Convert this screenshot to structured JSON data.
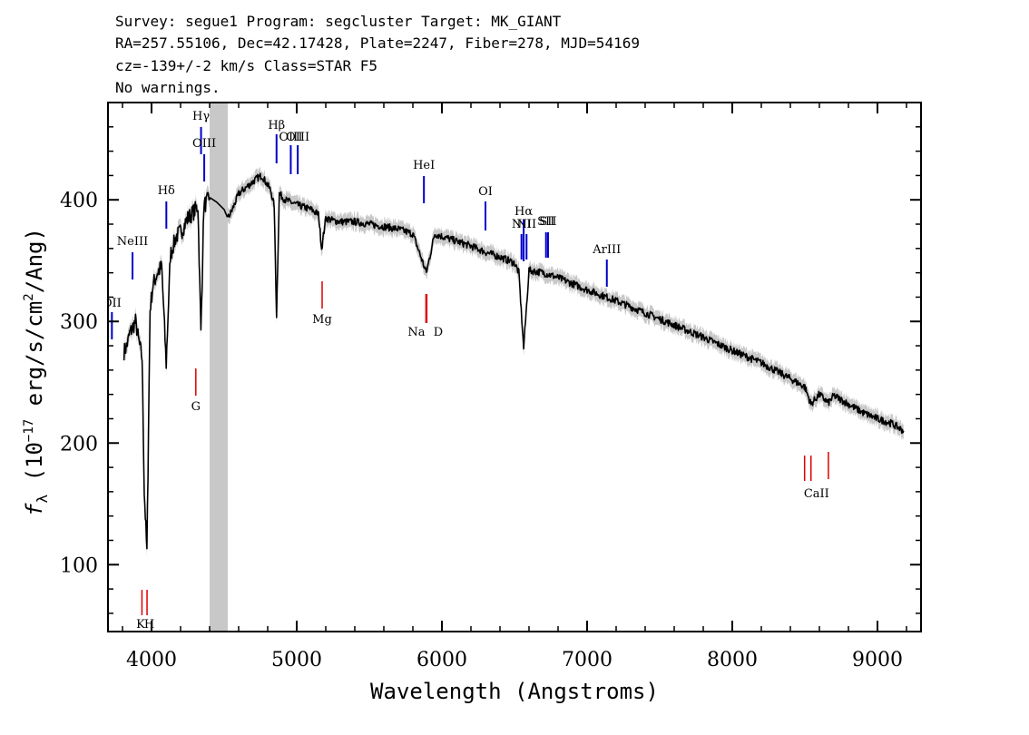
{
  "header": {
    "line1": "Survey: segue1 Program: segcluster Target: MK_GIANT",
    "line2": "RA=257.55106, Dec=42.17428, Plate=2247, Fiber=278, MJD=54169",
    "line3": "cz=-139+/-2 km/s Class=STAR F5",
    "line4": "No warnings."
  },
  "chart_data": {
    "type": "line",
    "title": "",
    "xlabel": "Wavelength (Angstroms)",
    "ylabel": "f_λ (10^-17 erg/s/cm^2/Ang)",
    "xlim": [
      3700,
      9300
    ],
    "ylim": [
      45,
      480
    ],
    "x_ticks": [
      4000,
      5000,
      6000,
      7000,
      8000,
      9000
    ],
    "y_ticks": [
      100,
      200,
      300,
      400
    ],
    "colors": {
      "spectrum": "#000000",
      "error_band": "#c8c8c8",
      "emission_lines": "#0000cc",
      "absorption_lines": "#dd0000",
      "masked_band": "#c8c8c8"
    },
    "masked_region": [
      4400,
      4525
    ],
    "series": [
      {
        "x": [
          3810,
          3830,
          3850,
          3870,
          3890,
          3910,
          3935,
          3950,
          3968,
          3990,
          4010,
          4040,
          4070,
          4101,
          4130,
          4170,
          4210,
          4250,
          4290,
          4320,
          4340,
          4360,
          4380,
          4400,
          4450,
          4500,
          4525,
          4550,
          4600,
          4650,
          4700,
          4730,
          4760,
          4790,
          4820,
          4845,
          4861,
          4880,
          4920,
          4960,
          5000,
          5050,
          5100,
          5150,
          5172,
          5200,
          5250,
          5300,
          5400,
          5500,
          5600,
          5700,
          5800,
          5893,
          5950,
          6000,
          6100,
          6200,
          6300,
          6400,
          6500,
          6530,
          6563,
          6600,
          6700,
          6800,
          6900,
          7000,
          7200,
          7400,
          7600,
          7800,
          8000,
          8200,
          8400,
          8500,
          8542,
          8600,
          8662,
          8700,
          8800,
          8900,
          9000,
          9100,
          9180
        ],
        "y": [
          275,
          280,
          290,
          295,
          300,
          285,
          270,
          160,
          110,
          310,
          330,
          340,
          345,
          265,
          355,
          370,
          375,
          385,
          390,
          395,
          290,
          395,
          398,
          402,
          398,
          392,
          385,
          390,
          405,
          410,
          415,
          418,
          420,
          414,
          408,
          395,
          305,
          405,
          400,
          398,
          396,
          394,
          392,
          388,
          360,
          385,
          383,
          382,
          382,
          380,
          378,
          376,
          372,
          340,
          372,
          370,
          366,
          362,
          357,
          353,
          348,
          340,
          278,
          342,
          340,
          336,
          331,
          326,
          317,
          307,
          297,
          287,
          276,
          266,
          253,
          246,
          232,
          240,
          233,
          239,
          232,
          225,
          220,
          216,
          210
        ]
      }
    ],
    "emission_lines": [
      {
        "label": "OII",
        "wavelength": 3727
      },
      {
        "label": "NeIII",
        "wavelength": 3869
      },
      {
        "label": "Hδ",
        "wavelength": 4102
      },
      {
        "label": "Hγ",
        "wavelength": 4341
      },
      {
        "label": "OIII",
        "wavelength": 4363
      },
      {
        "label": "Hβ",
        "wavelength": 4861
      },
      {
        "label": "OIII",
        "wavelength": 4959
      },
      {
        "label": "OIII",
        "wavelength": 5007
      },
      {
        "label": "HeI",
        "wavelength": 5876
      },
      {
        "label": "OI",
        "wavelength": 6300
      },
      {
        "label": "NII",
        "wavelength": 6548
      },
      {
        "label": "Hα",
        "wavelength": 6563
      },
      {
        "label": "NII",
        "wavelength": 6583
      },
      {
        "label": "SII",
        "wavelength": 6717
      },
      {
        "label": "SII",
        "wavelength": 6731
      },
      {
        "label": "ArIII",
        "wavelength": 7136
      }
    ],
    "absorption_lines": [
      {
        "label": "K",
        "wavelength": 3934
      },
      {
        "label": "H",
        "wavelength": 3969
      },
      {
        "label": "G",
        "wavelength": 4305
      },
      {
        "label": "Mg",
        "wavelength": 5175
      },
      {
        "label": "Na",
        "wavelength": 5890
      },
      {
        "label": "D",
        "wavelength": 5896
      },
      {
        "label": "CaII",
        "wavelength": 8498
      },
      {
        "label": "CaII",
        "wavelength": 8542
      },
      {
        "label": "CaII",
        "wavelength": 8662
      }
    ]
  }
}
